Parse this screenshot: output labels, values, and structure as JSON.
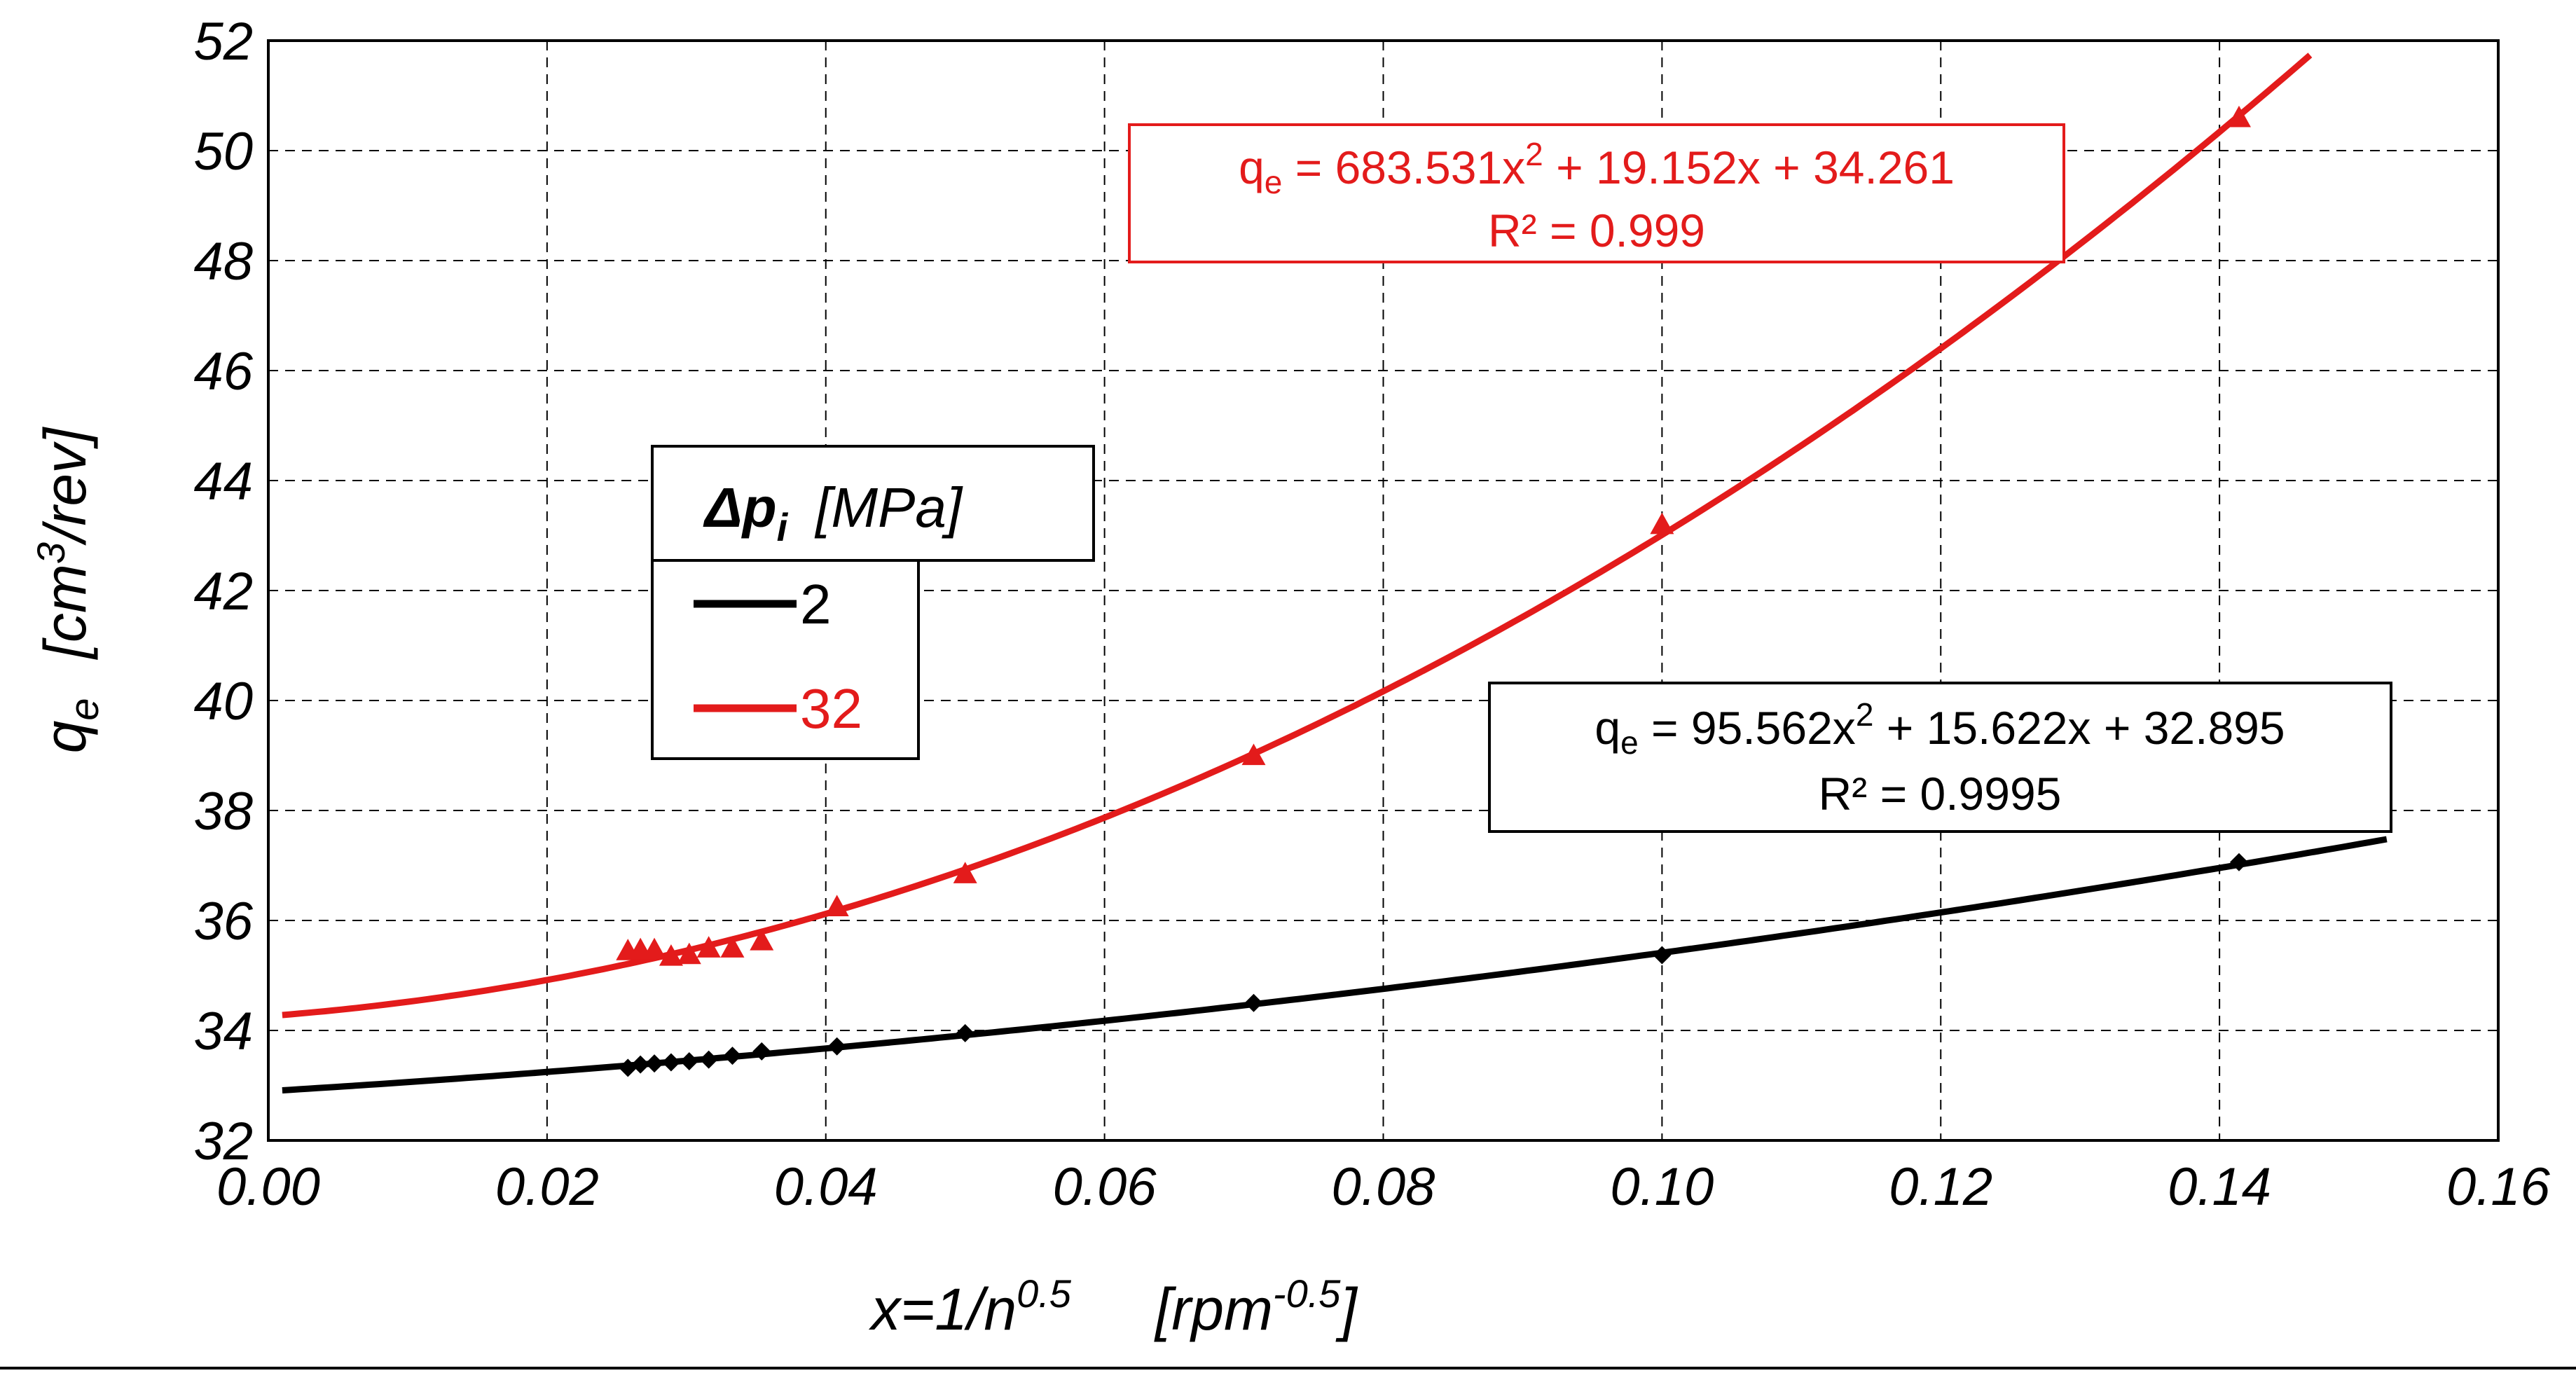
{
  "chart_data": {
    "type": "scatter",
    "title": "",
    "xlabel": {
      "base": "x=1/n",
      "base_sup": "0.5",
      "unit_prefix": "[rpm",
      "unit_sup": "-0.5",
      "unit_suffix": "]"
    },
    "ylabel": {
      "symbol": "q",
      "symbol_sub": "e",
      "unit_prefix": "[cm",
      "unit_sup": "3",
      "unit_suffix": "/rev]"
    },
    "xlim": [
      0,
      0.16
    ],
    "ylim": [
      32,
      52
    ],
    "grid": true,
    "grid_style": "dashed",
    "x_ticks": [
      "0.00",
      "0.02",
      "0.04",
      "0.06",
      "0.08",
      "0.10",
      "0.12",
      "0.14",
      "0.16"
    ],
    "y_ticks": [
      "32",
      "34",
      "36",
      "38",
      "40",
      "42",
      "44",
      "46",
      "48",
      "50",
      "52"
    ],
    "legend": {
      "position": "center-left",
      "title_symbol": "Δp",
      "title_sub": "i",
      "title_unit": "[MPa]",
      "entries": [
        {
          "label": "2",
          "color": "#000000"
        },
        {
          "label": "32",
          "color": "#e31b1b"
        }
      ]
    },
    "series": [
      {
        "name": "2",
        "color": "#000000",
        "marker": "diamond",
        "points": [
          {
            "x": 0.0258,
            "y": 33.32
          },
          {
            "x": 0.0267,
            "y": 33.38
          },
          {
            "x": 0.0277,
            "y": 33.4
          },
          {
            "x": 0.0289,
            "y": 33.42
          },
          {
            "x": 0.0302,
            "y": 33.44
          },
          {
            "x": 0.0316,
            "y": 33.47
          },
          {
            "x": 0.0333,
            "y": 33.54
          },
          {
            "x": 0.0354,
            "y": 33.62
          },
          {
            "x": 0.0408,
            "y": 33.71
          },
          {
            "x": 0.05,
            "y": 33.95
          },
          {
            "x": 0.0707,
            "y": 34.5
          },
          {
            "x": 0.1,
            "y": 35.37
          },
          {
            "x": 0.1414,
            "y": 37.06
          }
        ],
        "fit": {
          "a": 95.562,
          "b": 15.622,
          "c": 32.895,
          "x_range": [
            0.001,
            0.152
          ]
        },
        "equation": {
          "prefix": "q",
          "sub": "e",
          "mid": " = 95.562x",
          "sup": "2",
          "suffix": "  + 15.622x  + 32.895",
          "r2": "R² = 0.9995"
        }
      },
      {
        "name": "32",
        "color": "#e31b1b",
        "marker": "triangle",
        "points": [
          {
            "x": 0.0258,
            "y": 35.45
          },
          {
            "x": 0.0267,
            "y": 35.47
          },
          {
            "x": 0.0277,
            "y": 35.47
          },
          {
            "x": 0.0289,
            "y": 35.35
          },
          {
            "x": 0.0302,
            "y": 35.38
          },
          {
            "x": 0.0316,
            "y": 35.5
          },
          {
            "x": 0.0333,
            "y": 35.5
          },
          {
            "x": 0.0354,
            "y": 35.63
          },
          {
            "x": 0.0408,
            "y": 36.25
          },
          {
            "x": 0.05,
            "y": 36.85
          },
          {
            "x": 0.0707,
            "y": 39.0
          },
          {
            "x": 0.1,
            "y": 43.2
          },
          {
            "x": 0.1414,
            "y": 50.6
          }
        ],
        "fit": {
          "a": 683.531,
          "b": 19.152,
          "c": 34.261,
          "x_range": [
            0.001,
            0.1465
          ]
        },
        "equation": {
          "prefix": "q",
          "sub": "e",
          "mid": " = 683.531x",
          "sup": "2",
          "suffix": "  + 19.152x  + 34.261",
          "r2": "R² = 0.999"
        }
      }
    ]
  }
}
